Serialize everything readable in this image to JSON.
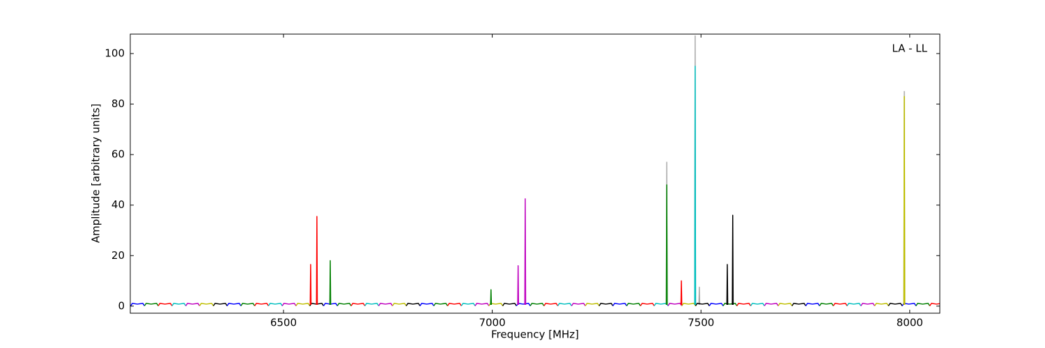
{
  "chart_data": {
    "type": "line",
    "annotation": "LA - LL",
    "xlabel": "Frequency [MHz]",
    "ylabel": "Amplitude [arbitrary units]",
    "xlim": [
      6133,
      8072
    ],
    "ylim": [
      -2.8,
      107.7
    ],
    "xticks": [
      6500,
      7000,
      7500,
      8000
    ],
    "yticks": [
      0,
      20,
      40,
      60,
      80,
      100
    ],
    "series": [
      {
        "color": "#aaaaaa",
        "x": [
          7417,
          7418,
          7419
        ],
        "values": [
          0.5,
          57,
          0.5
        ]
      },
      {
        "color": "#aaaaaa",
        "x": [
          7485,
          7486,
          7487
        ],
        "values": [
          0.5,
          107,
          0.5
        ]
      },
      {
        "color": "#aaaaaa",
        "x": [
          7495,
          7496,
          7497
        ],
        "values": [
          0.5,
          7.5,
          0.5
        ]
      },
      {
        "color": "#aaaaaa",
        "x": [
          7986,
          7987,
          7988
        ],
        "values": [
          0.5,
          85,
          0.5
        ]
      },
      {
        "color": "#0000ff",
        "x": [
          6134,
          6138,
          6150,
          6163,
          6167
        ],
        "values": [
          0.1,
          1.1,
          0.8,
          1.1,
          0.1
        ]
      },
      {
        "color": "#008000",
        "x": [
          6167,
          6171,
          6183,
          6196,
          6200
        ],
        "values": [
          0.1,
          1.1,
          0.8,
          1.1,
          0.1
        ]
      },
      {
        "color": "#ff0000",
        "x": [
          6200,
          6204,
          6216,
          6229,
          6233
        ],
        "values": [
          0.1,
          1.1,
          0.8,
          1.1,
          0.1
        ]
      },
      {
        "color": "#00bfbf",
        "x": [
          6233,
          6237,
          6249,
          6262,
          6266
        ],
        "values": [
          0.1,
          1.1,
          0.8,
          1.1,
          0.1
        ]
      },
      {
        "color": "#bf00bf",
        "x": [
          6266,
          6270,
          6282,
          6295,
          6299
        ],
        "values": [
          0.1,
          1.1,
          0.8,
          1.1,
          0.1
        ]
      },
      {
        "color": "#bfbf00",
        "x": [
          6299,
          6303,
          6315,
          6328,
          6332
        ],
        "values": [
          0.1,
          1.1,
          0.8,
          1.1,
          0.1
        ]
      },
      {
        "color": "#000000",
        "x": [
          6332,
          6336,
          6348,
          6361,
          6365
        ],
        "values": [
          0.1,
          1.1,
          0.8,
          1.1,
          0.1
        ]
      },
      {
        "color": "#0000ff",
        "x": [
          6365,
          6369,
          6381,
          6394,
          6398
        ],
        "values": [
          0.1,
          1.1,
          0.8,
          1.1,
          0.1
        ]
      },
      {
        "color": "#008000",
        "x": [
          6398,
          6402,
          6414,
          6427,
          6431
        ],
        "values": [
          0.1,
          1.1,
          0.8,
          1.1,
          0.1
        ]
      },
      {
        "color": "#ff0000",
        "x": [
          6431,
          6435,
          6447,
          6460,
          6464
        ],
        "values": [
          0.1,
          1.1,
          0.8,
          1.1,
          0.1
        ]
      },
      {
        "color": "#00bfbf",
        "x": [
          6464,
          6468,
          6480,
          6493,
          6497
        ],
        "values": [
          0.1,
          1.1,
          0.8,
          1.1,
          0.1
        ]
      },
      {
        "color": "#bf00bf",
        "x": [
          6497,
          6501,
          6513,
          6526,
          6530
        ],
        "values": [
          0.1,
          1.1,
          0.8,
          1.1,
          0.1
        ]
      },
      {
        "color": "#bfbf00",
        "x": [
          6530,
          6534,
          6546,
          6559,
          6563
        ],
        "values": [
          0.1,
          1.1,
          0.8,
          1.1,
          0.1
        ]
      },
      {
        "color": "#000000",
        "x": [
          6563,
          6567,
          6579,
          6592,
          6596
        ],
        "values": [
          0.1,
          1.1,
          0.8,
          1.1,
          0.1
        ]
      },
      {
        "color": "#0000ff",
        "x": [
          6596,
          6600,
          6612,
          6625,
          6629
        ],
        "values": [
          0.1,
          1.1,
          0.8,
          1.1,
          0.1
        ]
      },
      {
        "color": "#008000",
        "x": [
          6629,
          6633,
          6645,
          6658,
          6662
        ],
        "values": [
          0.1,
          1.1,
          0.8,
          1.1,
          0.1
        ]
      },
      {
        "color": "#ff0000",
        "x": [
          6662,
          6666,
          6678,
          6691,
          6695
        ],
        "values": [
          0.1,
          1.1,
          0.8,
          1.1,
          0.1
        ]
      },
      {
        "color": "#00bfbf",
        "x": [
          6695,
          6699,
          6711,
          6724,
          6728
        ],
        "values": [
          0.1,
          1.1,
          0.8,
          1.1,
          0.1
        ]
      },
      {
        "color": "#bf00bf",
        "x": [
          6728,
          6732,
          6744,
          6757,
          6761
        ],
        "values": [
          0.1,
          1.1,
          0.8,
          1.1,
          0.1
        ]
      },
      {
        "color": "#bfbf00",
        "x": [
          6761,
          6765,
          6777,
          6790,
          6794
        ],
        "values": [
          0.1,
          1.1,
          0.8,
          1.1,
          0.1
        ]
      },
      {
        "color": "#000000",
        "x": [
          6794,
          6798,
          6810,
          6823,
          6827
        ],
        "values": [
          0.1,
          1.1,
          0.8,
          1.1,
          0.1
        ]
      },
      {
        "color": "#0000ff",
        "x": [
          6827,
          6831,
          6843,
          6856,
          6860
        ],
        "values": [
          0.1,
          1.1,
          0.8,
          1.1,
          0.1
        ]
      },
      {
        "color": "#008000",
        "x": [
          6860,
          6864,
          6876,
          6889,
          6893
        ],
        "values": [
          0.1,
          1.1,
          0.8,
          1.1,
          0.1
        ]
      },
      {
        "color": "#ff0000",
        "x": [
          6893,
          6897,
          6909,
          6922,
          6926
        ],
        "values": [
          0.1,
          1.1,
          0.8,
          1.1,
          0.1
        ]
      },
      {
        "color": "#00bfbf",
        "x": [
          6926,
          6930,
          6942,
          6955,
          6959
        ],
        "values": [
          0.1,
          1.1,
          0.8,
          1.1,
          0.1
        ]
      },
      {
        "color": "#bf00bf",
        "x": [
          6959,
          6963,
          6975,
          6988,
          6992
        ],
        "values": [
          0.1,
          1.1,
          0.8,
          1.1,
          0.1
        ]
      },
      {
        "color": "#bfbf00",
        "x": [
          6992,
          6996,
          7008,
          7021,
          7025
        ],
        "values": [
          0.1,
          1.1,
          0.8,
          1.1,
          0.1
        ]
      },
      {
        "color": "#000000",
        "x": [
          7025,
          7029,
          7041,
          7054,
          7058
        ],
        "values": [
          0.1,
          1.1,
          0.8,
          1.1,
          0.1
        ]
      },
      {
        "color": "#0000ff",
        "x": [
          7058,
          7062,
          7074,
          7087,
          7091
        ],
        "values": [
          0.1,
          1.1,
          0.8,
          1.1,
          0.1
        ]
      },
      {
        "color": "#008000",
        "x": [
          7091,
          7095,
          7107,
          7120,
          7124
        ],
        "values": [
          0.1,
          1.1,
          0.8,
          1.1,
          0.1
        ]
      },
      {
        "color": "#ff0000",
        "x": [
          7124,
          7128,
          7140,
          7153,
          7157
        ],
        "values": [
          0.1,
          1.1,
          0.8,
          1.1,
          0.1
        ]
      },
      {
        "color": "#00bfbf",
        "x": [
          7157,
          7161,
          7173,
          7186,
          7190
        ],
        "values": [
          0.1,
          1.1,
          0.8,
          1.1,
          0.1
        ]
      },
      {
        "color": "#bf00bf",
        "x": [
          7190,
          7194,
          7206,
          7219,
          7223
        ],
        "values": [
          0.1,
          1.1,
          0.8,
          1.1,
          0.1
        ]
      },
      {
        "color": "#bfbf00",
        "x": [
          7223,
          7227,
          7239,
          7252,
          7256
        ],
        "values": [
          0.1,
          1.1,
          0.8,
          1.1,
          0.1
        ]
      },
      {
        "color": "#000000",
        "x": [
          7256,
          7260,
          7272,
          7285,
          7289
        ],
        "values": [
          0.1,
          1.1,
          0.8,
          1.1,
          0.1
        ]
      },
      {
        "color": "#0000ff",
        "x": [
          7289,
          7293,
          7305,
          7318,
          7322
        ],
        "values": [
          0.1,
          1.1,
          0.8,
          1.1,
          0.1
        ]
      },
      {
        "color": "#008000",
        "x": [
          7322,
          7326,
          7338,
          7351,
          7355
        ],
        "values": [
          0.1,
          1.1,
          0.8,
          1.1,
          0.1
        ]
      },
      {
        "color": "#ff0000",
        "x": [
          7355,
          7359,
          7371,
          7384,
          7388
        ],
        "values": [
          0.1,
          1.1,
          0.8,
          1.1,
          0.1
        ]
      },
      {
        "color": "#00bfbf",
        "x": [
          7388,
          7392,
          7404,
          7417,
          7421
        ],
        "values": [
          0.1,
          1.1,
          0.8,
          1.1,
          0.1
        ]
      },
      {
        "color": "#bf00bf",
        "x": [
          7421,
          7425,
          7437,
          7450,
          7454
        ],
        "values": [
          0.1,
          1.1,
          0.8,
          1.1,
          0.1
        ]
      },
      {
        "color": "#bfbf00",
        "x": [
          7454,
          7458,
          7470,
          7483,
          7487
        ],
        "values": [
          0.1,
          1.1,
          0.8,
          1.1,
          0.1
        ]
      },
      {
        "color": "#000000",
        "x": [
          7487,
          7491,
          7503,
          7516,
          7520
        ],
        "values": [
          0.1,
          1.1,
          0.8,
          1.1,
          0.1
        ]
      },
      {
        "color": "#0000ff",
        "x": [
          7520,
          7524,
          7536,
          7549,
          7553
        ],
        "values": [
          0.1,
          1.1,
          0.8,
          1.1,
          0.1
        ]
      },
      {
        "color": "#008000",
        "x": [
          7553,
          7557,
          7569,
          7582,
          7586
        ],
        "values": [
          0.1,
          1.1,
          0.8,
          1.1,
          0.1
        ]
      },
      {
        "color": "#ff0000",
        "x": [
          7586,
          7590,
          7602,
          7615,
          7619
        ],
        "values": [
          0.1,
          1.1,
          0.8,
          1.1,
          0.1
        ]
      },
      {
        "color": "#00bfbf",
        "x": [
          7619,
          7623,
          7635,
          7648,
          7652
        ],
        "values": [
          0.1,
          1.1,
          0.8,
          1.1,
          0.1
        ]
      },
      {
        "color": "#bf00bf",
        "x": [
          7652,
          7656,
          7668,
          7681,
          7685
        ],
        "values": [
          0.1,
          1.1,
          0.8,
          1.1,
          0.1
        ]
      },
      {
        "color": "#bfbf00",
        "x": [
          7685,
          7689,
          7701,
          7714,
          7718
        ],
        "values": [
          0.1,
          1.1,
          0.8,
          1.1,
          0.1
        ]
      },
      {
        "color": "#000000",
        "x": [
          7718,
          7722,
          7734,
          7747,
          7751
        ],
        "values": [
          0.1,
          1.1,
          0.8,
          1.1,
          0.1
        ]
      },
      {
        "color": "#0000ff",
        "x": [
          7751,
          7755,
          7767,
          7780,
          7784
        ],
        "values": [
          0.1,
          1.1,
          0.8,
          1.1,
          0.1
        ]
      },
      {
        "color": "#008000",
        "x": [
          7784,
          7788,
          7800,
          7813,
          7817
        ],
        "values": [
          0.1,
          1.1,
          0.8,
          1.1,
          0.1
        ]
      },
      {
        "color": "#ff0000",
        "x": [
          7817,
          7821,
          7833,
          7846,
          7850
        ],
        "values": [
          0.1,
          1.1,
          0.8,
          1.1,
          0.1
        ]
      },
      {
        "color": "#00bfbf",
        "x": [
          7850,
          7854,
          7866,
          7879,
          7883
        ],
        "values": [
          0.1,
          1.1,
          0.8,
          1.1,
          0.1
        ]
      },
      {
        "color": "#bf00bf",
        "x": [
          7883,
          7887,
          7899,
          7912,
          7916
        ],
        "values": [
          0.1,
          1.1,
          0.8,
          1.1,
          0.1
        ]
      },
      {
        "color": "#bfbf00",
        "x": [
          7916,
          7920,
          7932,
          7945,
          7949
        ],
        "values": [
          0.1,
          1.1,
          0.8,
          1.1,
          0.1
        ]
      },
      {
        "color": "#000000",
        "x": [
          7949,
          7953,
          7965,
          7978,
          7982
        ],
        "values": [
          0.1,
          1.1,
          0.8,
          1.1,
          0.1
        ]
      },
      {
        "color": "#0000ff",
        "x": [
          7982,
          7986,
          7998,
          8011,
          8015
        ],
        "values": [
          0.1,
          1.1,
          0.8,
          1.1,
          0.1
        ]
      },
      {
        "color": "#008000",
        "x": [
          8015,
          8019,
          8031,
          8044,
          8048
        ],
        "values": [
          0.1,
          1.1,
          0.8,
          1.1,
          0.1
        ]
      },
      {
        "color": "#ff0000",
        "x": [
          8048,
          8052,
          8064,
          8077,
          8081
        ],
        "values": [
          0.1,
          1.1,
          0.8,
          1.1,
          0.1
        ]
      },
      {
        "color": "#ff0000",
        "x": [
          6564,
          6565,
          6566
        ],
        "values": [
          0.5,
          16.5,
          0.5
        ]
      },
      {
        "color": "#ff0000",
        "x": [
          6579,
          6580,
          6581
        ],
        "values": [
          0.5,
          35.5,
          0.5
        ]
      },
      {
        "color": "#008000",
        "x": [
          6611,
          6612,
          6613
        ],
        "values": [
          0.5,
          18,
          0.5
        ]
      },
      {
        "color": "#008000",
        "x": [
          6996,
          6997,
          6998
        ],
        "values": [
          0.5,
          6.5,
          0.5
        ]
      },
      {
        "color": "#bf00bf",
        "x": [
          7061,
          7062,
          7063
        ],
        "values": [
          0.5,
          16,
          0.5
        ]
      },
      {
        "color": "#bf00bf",
        "x": [
          7078,
          7079,
          7080
        ],
        "values": [
          0.5,
          42.5,
          0.5
        ]
      },
      {
        "color": "#008000",
        "x": [
          7417,
          7418,
          7419
        ],
        "values": [
          0.5,
          48,
          0.5
        ]
      },
      {
        "color": "#ff0000",
        "x": [
          7452,
          7453,
          7454
        ],
        "values": [
          0.5,
          10,
          0.5
        ]
      },
      {
        "color": "#00bfbf",
        "x": [
          7485,
          7486,
          7487
        ],
        "values": [
          0.5,
          95,
          0.5
        ]
      },
      {
        "color": "#000000",
        "x": [
          7562,
          7563,
          7564
        ],
        "values": [
          0.5,
          16.5,
          0.5
        ]
      },
      {
        "color": "#000000",
        "x": [
          7575,
          7576,
          7577
        ],
        "values": [
          0.5,
          36,
          0.5
        ]
      },
      {
        "color": "#bfbf00",
        "x": [
          7986,
          7987,
          7988
        ],
        "values": [
          0.5,
          83,
          0.5
        ]
      }
    ]
  }
}
